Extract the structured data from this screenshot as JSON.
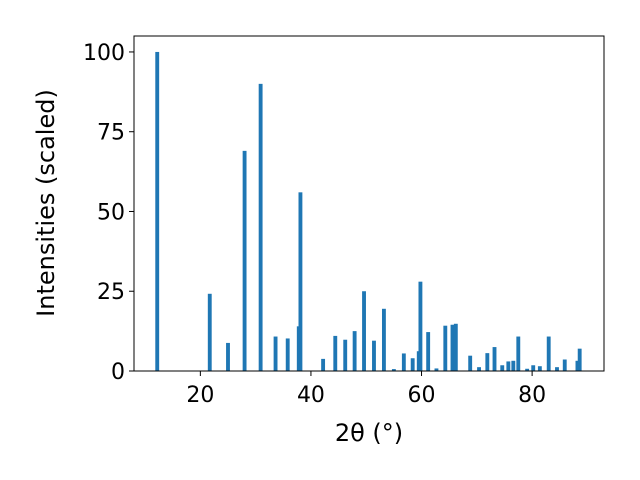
{
  "chart_data": {
    "type": "bar",
    "xlabel": "2θ (°)",
    "ylabel": "Intensities (scaled)",
    "xlim": [
      8.0,
      93.0
    ],
    "ylim": [
      0,
      105
    ],
    "x_ticks": [
      20,
      40,
      60,
      80
    ],
    "y_ticks": [
      0,
      25,
      50,
      75,
      100
    ],
    "bar_width": 0.7,
    "bar_color": "#1f77b4",
    "grid": false,
    "x": [
      12.2,
      21.7,
      25.0,
      28.0,
      30.9,
      33.6,
      35.8,
      37.8,
      38.1,
      42.2,
      44.4,
      46.2,
      47.9,
      49.6,
      51.4,
      53.2,
      55.0,
      56.8,
      58.4,
      59.5,
      59.8,
      61.2,
      62.7,
      64.3,
      65.6,
      66.2,
      68.8,
      70.4,
      71.9,
      73.2,
      74.6,
      75.7,
      76.6,
      77.5,
      79.1,
      80.2,
      81.4,
      83.0,
      84.5,
      85.9,
      88.2,
      88.6
    ],
    "values": [
      100.0,
      24.2,
      8.8,
      69.0,
      90.0,
      10.8,
      10.2,
      14.0,
      56.0,
      3.8,
      11.0,
      9.8,
      12.5,
      25.0,
      9.5,
      19.5,
      0.6,
      5.5,
      4.0,
      6.2,
      28.0,
      12.2,
      0.8,
      14.2,
      14.5,
      14.8,
      4.8,
      1.2,
      5.6,
      7.5,
      1.8,
      3.0,
      3.2,
      10.8,
      0.7,
      1.8,
      1.5,
      10.8,
      1.2,
      3.6,
      3.2,
      7.0
    ]
  }
}
